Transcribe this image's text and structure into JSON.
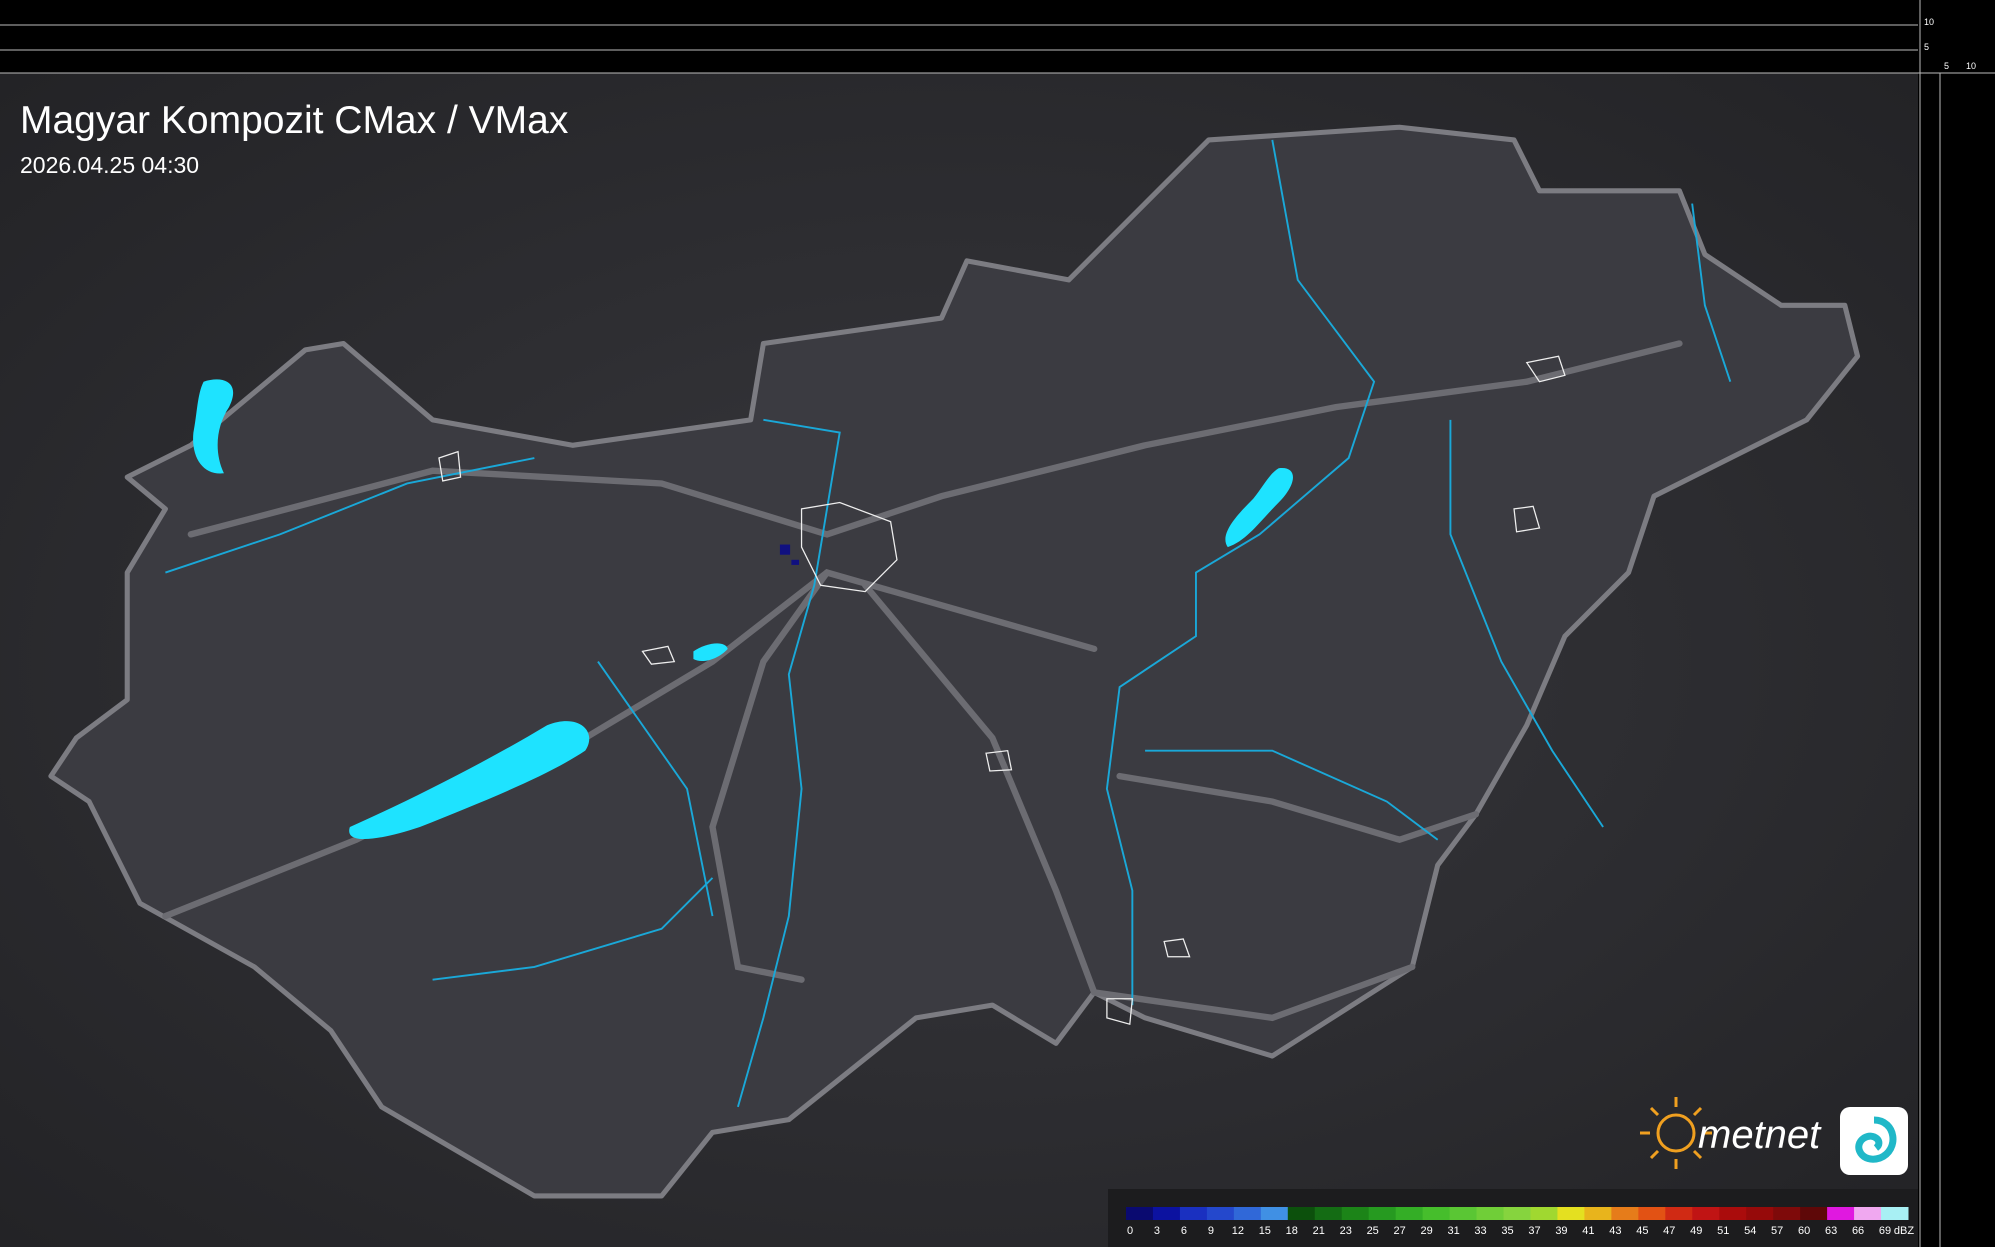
{
  "header": {
    "title": "Magyar Kompozit CMax / VMax",
    "timestamp": "2026.04.25 04:30"
  },
  "scale_labels": {
    "top": [
      "10",
      "5"
    ],
    "side": [
      "5",
      "10"
    ]
  },
  "logo": {
    "text": "metnet"
  },
  "legend": {
    "unit": "dBZ",
    "labels": [
      0,
      3,
      6,
      9,
      12,
      15,
      18,
      21,
      23,
      25,
      27,
      29,
      31,
      33,
      35,
      37,
      39,
      41,
      43,
      45,
      47,
      49,
      51,
      54,
      57,
      60,
      63,
      66,
      69
    ],
    "colors": [
      "#0a0a70",
      "#0c12a0",
      "#1a30c0",
      "#2448cc",
      "#3068d8",
      "#4090e4",
      "#0c500c",
      "#146c14",
      "#1c8418",
      "#269a20",
      "#34ae26",
      "#46be2c",
      "#5ac634",
      "#70ce38",
      "#86d43e",
      "#a0d830",
      "#e4e020",
      "#e8b41c",
      "#e67c1a",
      "#e25214",
      "#d02a14",
      "#c01414",
      "#aa0c0c",
      "#960a0a",
      "#7e0a0a",
      "#5e0808",
      "#e018e0",
      "#f0a8f0",
      "#a8f0f4"
    ]
  }
}
